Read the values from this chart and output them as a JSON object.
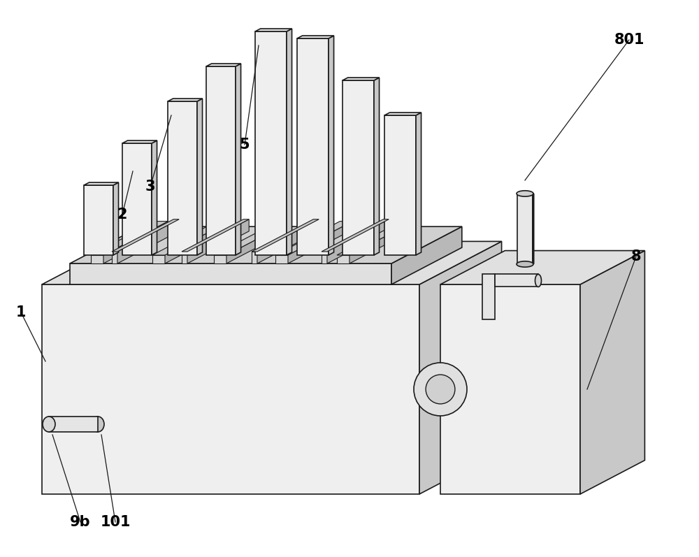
{
  "bg_color": "#ffffff",
  "line_color": "#1a1a1a",
  "line_width": 1.2,
  "fc_top": "#e0e0e0",
  "fc_side_right": "#c8c8c8",
  "fc_front": "#efefef",
  "fc_top_dark": "#d0d0d0",
  "fc_side_dark": "#b8b8b8",
  "figsize": [
    10.0,
    7.97
  ],
  "dpi": 100
}
